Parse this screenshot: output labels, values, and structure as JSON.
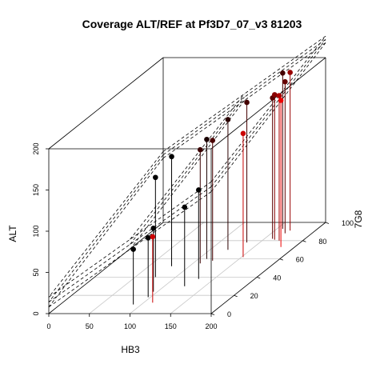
{
  "chart_data": {
    "type": "scatter3d",
    "title": "Coverage ALT/REF at Pf3D7_07_v3 81203",
    "xlabel": "HB3",
    "ylabel": "7G8",
    "zlabel": "ALT",
    "xlim": [
      0,
      200
    ],
    "ylim": [
      0,
      100
    ],
    "zlim": [
      0,
      200
    ],
    "x_ticks": [
      "0",
      "50",
      "100",
      "150",
      "200"
    ],
    "y_ticks": [
      "0",
      "20",
      "40",
      "60",
      "80",
      "100"
    ],
    "z_ticks": [
      "0",
      "50",
      "100",
      "150",
      "200"
    ],
    "regression_planes": 3,
    "points": [
      {
        "x": 75,
        "y": 40,
        "z": 121,
        "color": "#000000"
      },
      {
        "x": 78,
        "y": 52,
        "z": 133,
        "color": "#000000"
      },
      {
        "x": 90,
        "y": 10,
        "z": 67,
        "color": "#000000"
      },
      {
        "x": 95,
        "y": 24,
        "z": 77,
        "color": "#000000"
      },
      {
        "x": 97,
        "y": 18,
        "z": 72,
        "color": "#000000"
      },
      {
        "x": 110,
        "y": 60,
        "z": 145,
        "color": "#1a0000"
      },
      {
        "x": 109,
        "y": 55,
        "z": 138,
        "color": "#3a0000"
      },
      {
        "x": 111,
        "y": 12,
        "z": 80,
        "color": "#cc0000"
      },
      {
        "x": 120,
        "y": 58,
        "z": 146,
        "color": "#4a0000"
      },
      {
        "x": 122,
        "y": 70,
        "z": 158,
        "color": "#2a0000"
      },
      {
        "x": 125,
        "y": 30,
        "z": 96,
        "color": "#000000"
      },
      {
        "x": 131,
        "y": 38,
        "z": 108,
        "color": "#000000"
      },
      {
        "x": 134,
        "y": 78,
        "z": 170,
        "color": "#440000"
      },
      {
        "x": 152,
        "y": 62,
        "z": 150,
        "color": "#cc0000"
      },
      {
        "x": 157,
        "y": 93,
        "z": 189,
        "color": "#440000"
      },
      {
        "x": 160,
        "y": 82,
        "z": 171,
        "color": "#5a0000"
      },
      {
        "x": 164,
        "y": 81,
        "z": 176,
        "color": "#880000"
      },
      {
        "x": 167,
        "y": 88,
        "z": 184,
        "color": "#660000"
      },
      {
        "x": 169,
        "y": 91,
        "z": 192,
        "color": "#990000"
      },
      {
        "x": 171,
        "y": 80,
        "z": 176,
        "color": "#aa0000"
      },
      {
        "x": 183,
        "y": 73,
        "z": 178,
        "color": "#ee0000"
      }
    ]
  }
}
